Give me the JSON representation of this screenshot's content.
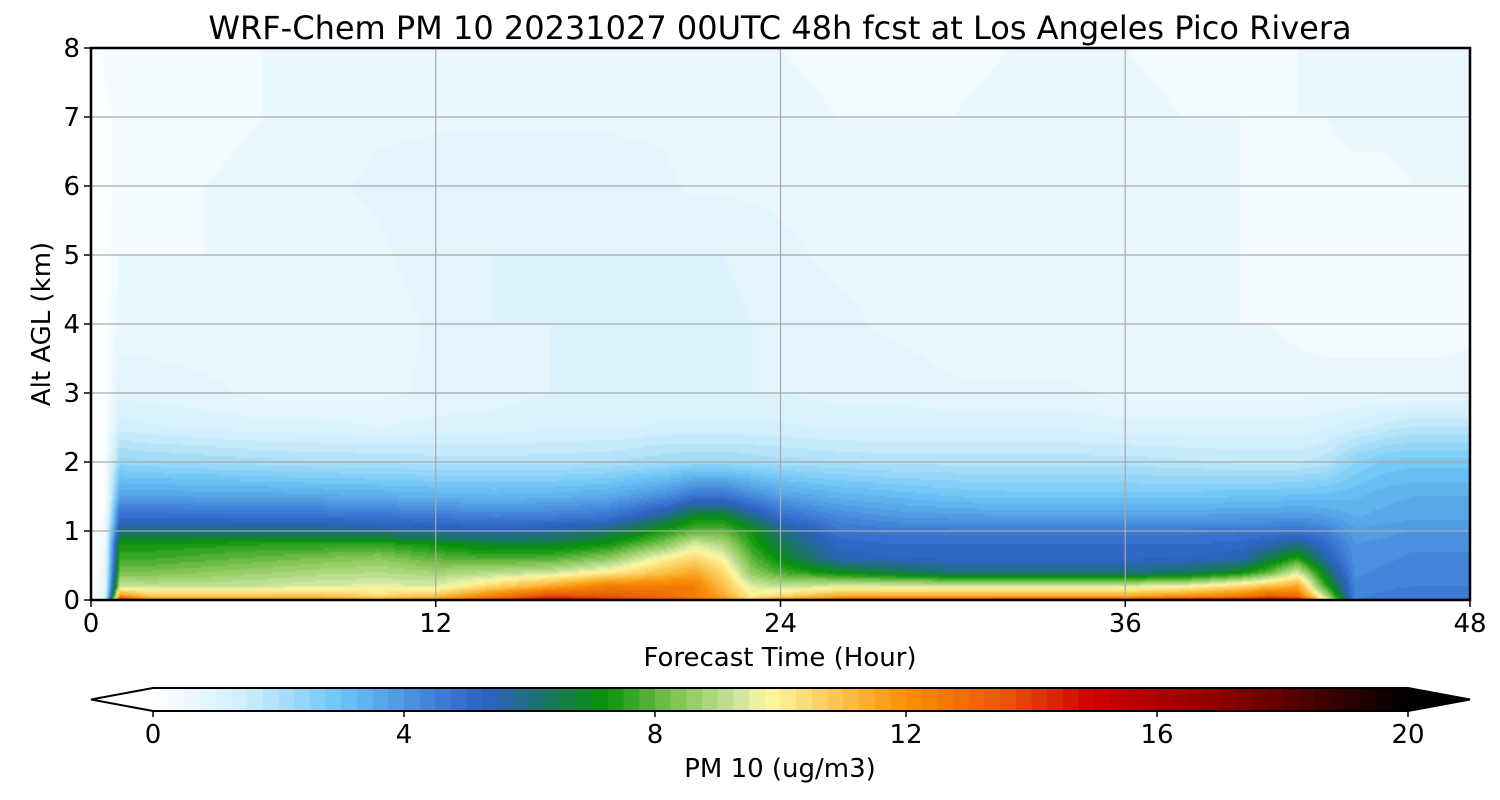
{
  "chart_data": {
    "type": "heatmap",
    "title": "WRF-Chem PM 10  20231027 00UTC 48h fcst at Los Angeles Pico Rivera",
    "xlabel": "Forecast Time (Hour)",
    "ylabel": "Alt AGL (km)",
    "xlim": [
      0,
      48
    ],
    "ylim": [
      0,
      8
    ],
    "x_ticks": [
      "0",
      "12",
      "24",
      "36",
      "48"
    ],
    "y_ticks": [
      "0",
      "1",
      "2",
      "3",
      "4",
      "5",
      "6",
      "7",
      "8"
    ],
    "grid": true,
    "colorbar": {
      "label": "PM 10  (ug/m3)",
      "ticks": [
        "0",
        "4",
        "8",
        "12",
        "16",
        "20"
      ],
      "range": [
        0,
        20
      ],
      "extend": "both",
      "orientation": "horizontal",
      "placement": "bottom",
      "stops": [
        {
          "v": 0,
          "c": "#ffffff"
        },
        {
          "v": 1.5,
          "c": "#cdeefc"
        },
        {
          "v": 3,
          "c": "#6cc4f5"
        },
        {
          "v": 4.5,
          "c": "#3f7fd6"
        },
        {
          "v": 5.3,
          "c": "#2d62c2"
        },
        {
          "v": 6.3,
          "c": "#1a7560"
        },
        {
          "v": 7.2,
          "c": "#079307"
        },
        {
          "v": 8.3,
          "c": "#7fc350"
        },
        {
          "v": 9.3,
          "c": "#c9e49c"
        },
        {
          "v": 9.8,
          "c": "#fdf9a3"
        },
        {
          "v": 11,
          "c": "#fbc04a"
        },
        {
          "v": 12,
          "c": "#fa8f05"
        },
        {
          "v": 13.5,
          "c": "#e95a0a"
        },
        {
          "v": 15,
          "c": "#cc0000"
        },
        {
          "v": 17,
          "c": "#8c0000"
        },
        {
          "v": 19,
          "c": "#300000"
        },
        {
          "v": 20,
          "c": "#000000"
        }
      ]
    },
    "hours": [
      0,
      0.5,
      1,
      2,
      4,
      6,
      8,
      10,
      12,
      14,
      16,
      18,
      20,
      21,
      22,
      23,
      24,
      26,
      28,
      30,
      32,
      34,
      36,
      38,
      40,
      41,
      42,
      43,
      44,
      45,
      46,
      47,
      48
    ],
    "levels_km": [
      0.0,
      0.05,
      0.2,
      0.4,
      0.6,
      0.8,
      1.0,
      1.2,
      1.5,
      2.0,
      2.5,
      3.0,
      4.0,
      5.0,
      6.0,
      7.0,
      8.0
    ],
    "values": [
      [
        0.0,
        1.0,
        15.5,
        12.5,
        12.5,
        12.5,
        12.5,
        12.0,
        12.5,
        14.0,
        15.5,
        14.5,
        13.5,
        13.0,
        12.0,
        11.0,
        12.5,
        13.5,
        14.0,
        14.0,
        14.5,
        14.5,
        14.5,
        15.0,
        15.5,
        16.0,
        15.5,
        10.0,
        4.5,
        4.8,
        4.8,
        4.8,
        4.8
      ],
      [
        0.0,
        0.9,
        12.0,
        11.0,
        11.0,
        11.0,
        11.0,
        10.5,
        11.0,
        12.5,
        14.0,
        13.5,
        13.0,
        12.5,
        11.5,
        10.0,
        10.5,
        11.5,
        11.5,
        11.5,
        11.5,
        11.5,
        11.5,
        12.0,
        12.5,
        13.5,
        13.0,
        9.0,
        4.4,
        4.6,
        4.7,
        4.7,
        4.7
      ],
      [
        0.0,
        0.8,
        9.3,
        9.2,
        9.2,
        9.3,
        9.5,
        9.6,
        9.5,
        10.5,
        11.5,
        12.5,
        12.5,
        12.5,
        11.0,
        9.5,
        9.2,
        9.5,
        9.5,
        9.5,
        9.5,
        9.5,
        9.5,
        9.7,
        10.5,
        11.0,
        11.5,
        7.5,
        4.3,
        4.4,
        4.5,
        4.5,
        4.5
      ],
      [
        0.0,
        0.7,
        8.3,
        8.3,
        8.5,
        8.7,
        8.9,
        9.0,
        8.8,
        9.0,
        9.3,
        10.0,
        11.0,
        11.5,
        10.5,
        8.5,
        7.8,
        7.0,
        6.5,
        6.0,
        6.0,
        6.0,
        6.0,
        6.2,
        7.0,
        8.0,
        9.5,
        6.5,
        4.2,
        4.3,
        4.4,
        4.4,
        4.4
      ],
      [
        0.0,
        0.6,
        7.7,
        7.7,
        7.9,
        8.1,
        8.3,
        8.5,
        8.0,
        7.8,
        7.9,
        8.5,
        10.0,
        10.5,
        9.8,
        8.0,
        7.0,
        5.5,
        5.3,
        5.2,
        5.2,
        5.2,
        5.2,
        5.3,
        5.5,
        6.5,
        7.5,
        5.5,
        4.1,
        4.2,
        4.3,
        4.3,
        4.3
      ],
      [
        0.0,
        0.5,
        7.3,
        7.3,
        7.4,
        7.5,
        7.5,
        7.6,
        7.2,
        6.8,
        6.8,
        7.3,
        8.5,
        9.5,
        9.0,
        7.5,
        6.5,
        5.2,
        5.0,
        5.0,
        5.0,
        5.0,
        5.0,
        5.0,
        5.1,
        5.5,
        6.0,
        5.0,
        4.0,
        4.1,
        4.2,
        4.2,
        4.2
      ],
      [
        0.0,
        0.4,
        6.0,
        6.0,
        6.0,
        6.0,
        6.0,
        5.8,
        5.6,
        5.4,
        5.6,
        6.2,
        7.4,
        8.0,
        8.0,
        7.2,
        6.0,
        4.8,
        4.6,
        4.6,
        4.6,
        4.6,
        4.6,
        4.6,
        4.7,
        4.7,
        4.8,
        4.5,
        3.8,
        3.9,
        4.0,
        4.0,
        4.0
      ],
      [
        0.0,
        0.3,
        5.0,
        5.0,
        5.0,
        4.9,
        4.9,
        4.8,
        4.7,
        4.5,
        4.6,
        4.8,
        6.0,
        7.0,
        7.0,
        6.0,
        5.0,
        4.3,
        4.0,
        3.9,
        3.8,
        3.8,
        3.8,
        3.8,
        3.9,
        3.9,
        4.0,
        3.8,
        3.5,
        3.6,
        3.7,
        3.7,
        3.7
      ],
      [
        0.0,
        0.2,
        3.8,
        3.8,
        3.7,
        3.7,
        3.6,
        3.5,
        3.4,
        3.3,
        3.4,
        3.6,
        4.2,
        4.8,
        4.8,
        4.3,
        3.8,
        3.4,
        3.2,
        3.0,
        2.9,
        2.9,
        2.9,
        2.9,
        3.0,
        3.0,
        3.1,
        3.1,
        3.2,
        3.4,
        3.5,
        3.5,
        3.5
      ],
      [
        0.0,
        0.15,
        2.4,
        2.3,
        2.2,
        2.1,
        2.0,
        2.0,
        1.9,
        1.9,
        1.9,
        2.0,
        2.2,
        2.3,
        2.3,
        2.2,
        2.1,
        2.0,
        1.9,
        1.9,
        1.9,
        1.9,
        1.9,
        1.8,
        1.7,
        1.7,
        1.7,
        1.9,
        2.5,
        2.8,
        2.9,
        2.9,
        2.9
      ],
      [
        0.0,
        0.1,
        1.4,
        1.3,
        1.2,
        1.1,
        1.1,
        1.0,
        1.1,
        1.1,
        1.2,
        1.2,
        1.3,
        1.3,
        1.3,
        1.3,
        1.3,
        1.2,
        1.2,
        1.2,
        1.2,
        1.2,
        1.1,
        1.1,
        1.1,
        1.1,
        1.1,
        1.2,
        1.4,
        1.6,
        1.8,
        1.8,
        1.8
      ],
      [
        0.0,
        0.1,
        0.9,
        0.9,
        0.8,
        0.7,
        0.7,
        0.7,
        0.8,
        0.9,
        1.0,
        1.0,
        1.0,
        1.0,
        1.0,
        1.0,
        1.0,
        0.9,
        0.9,
        0.8,
        0.8,
        0.8,
        0.7,
        0.7,
        0.7,
        0.7,
        0.7,
        0.7,
        0.7,
        0.7,
        0.7,
        0.7,
        0.7
      ],
      [
        0.0,
        0.1,
        0.6,
        0.6,
        0.6,
        0.6,
        0.6,
        0.6,
        0.8,
        1.0,
        1.0,
        1.0,
        1.0,
        1.0,
        1.1,
        1.0,
        0.9,
        0.8,
        0.7,
        0.6,
        0.5,
        0.5,
        0.5,
        0.5,
        0.5,
        0.5,
        0.4,
        0.3,
        0.3,
        0.3,
        0.3,
        0.3,
        0.4
      ],
      [
        0.0,
        0.1,
        0.5,
        0.5,
        0.5,
        0.5,
        0.6,
        0.7,
        0.9,
        1.0,
        1.0,
        1.0,
        1.0,
        1.0,
        1.0,
        0.9,
        0.8,
        0.7,
        0.7,
        0.6,
        0.6,
        0.5,
        0.5,
        0.5,
        0.5,
        0.4,
        0.3,
        0.3,
        0.3,
        0.3,
        0.3,
        0.3,
        0.4
      ],
      [
        0.0,
        0.1,
        0.4,
        0.4,
        0.5,
        0.6,
        0.7,
        0.8,
        0.9,
        0.9,
        0.9,
        0.9,
        0.8,
        0.7,
        0.7,
        0.7,
        0.7,
        0.7,
        0.6,
        0.6,
        0.6,
        0.6,
        0.7,
        0.6,
        0.5,
        0.4,
        0.4,
        0.4,
        0.4,
        0.4,
        0.5,
        0.5,
        0.5
      ],
      [
        0.0,
        0.2,
        0.3,
        0.4,
        0.4,
        0.5,
        0.6,
        0.7,
        0.7,
        0.7,
        0.7,
        0.7,
        0.7,
        0.6,
        0.6,
        0.6,
        0.6,
        0.5,
        0.5,
        0.5,
        0.6,
        0.7,
        0.6,
        0.5,
        0.5,
        0.5,
        0.5,
        0.5,
        0.6,
        0.6,
        0.6,
        0.7,
        0.7
      ],
      [
        0.0,
        0.3,
        0.3,
        0.3,
        0.4,
        0.5,
        0.6,
        0.6,
        0.6,
        0.6,
        0.5,
        0.5,
        0.5,
        0.5,
        0.5,
        0.5,
        0.5,
        0.4,
        0.4,
        0.4,
        0.5,
        0.6,
        0.5,
        0.4,
        0.4,
        0.4,
        0.5,
        0.6,
        0.6,
        0.7,
        0.7,
        0.7,
        0.7
      ]
    ]
  }
}
